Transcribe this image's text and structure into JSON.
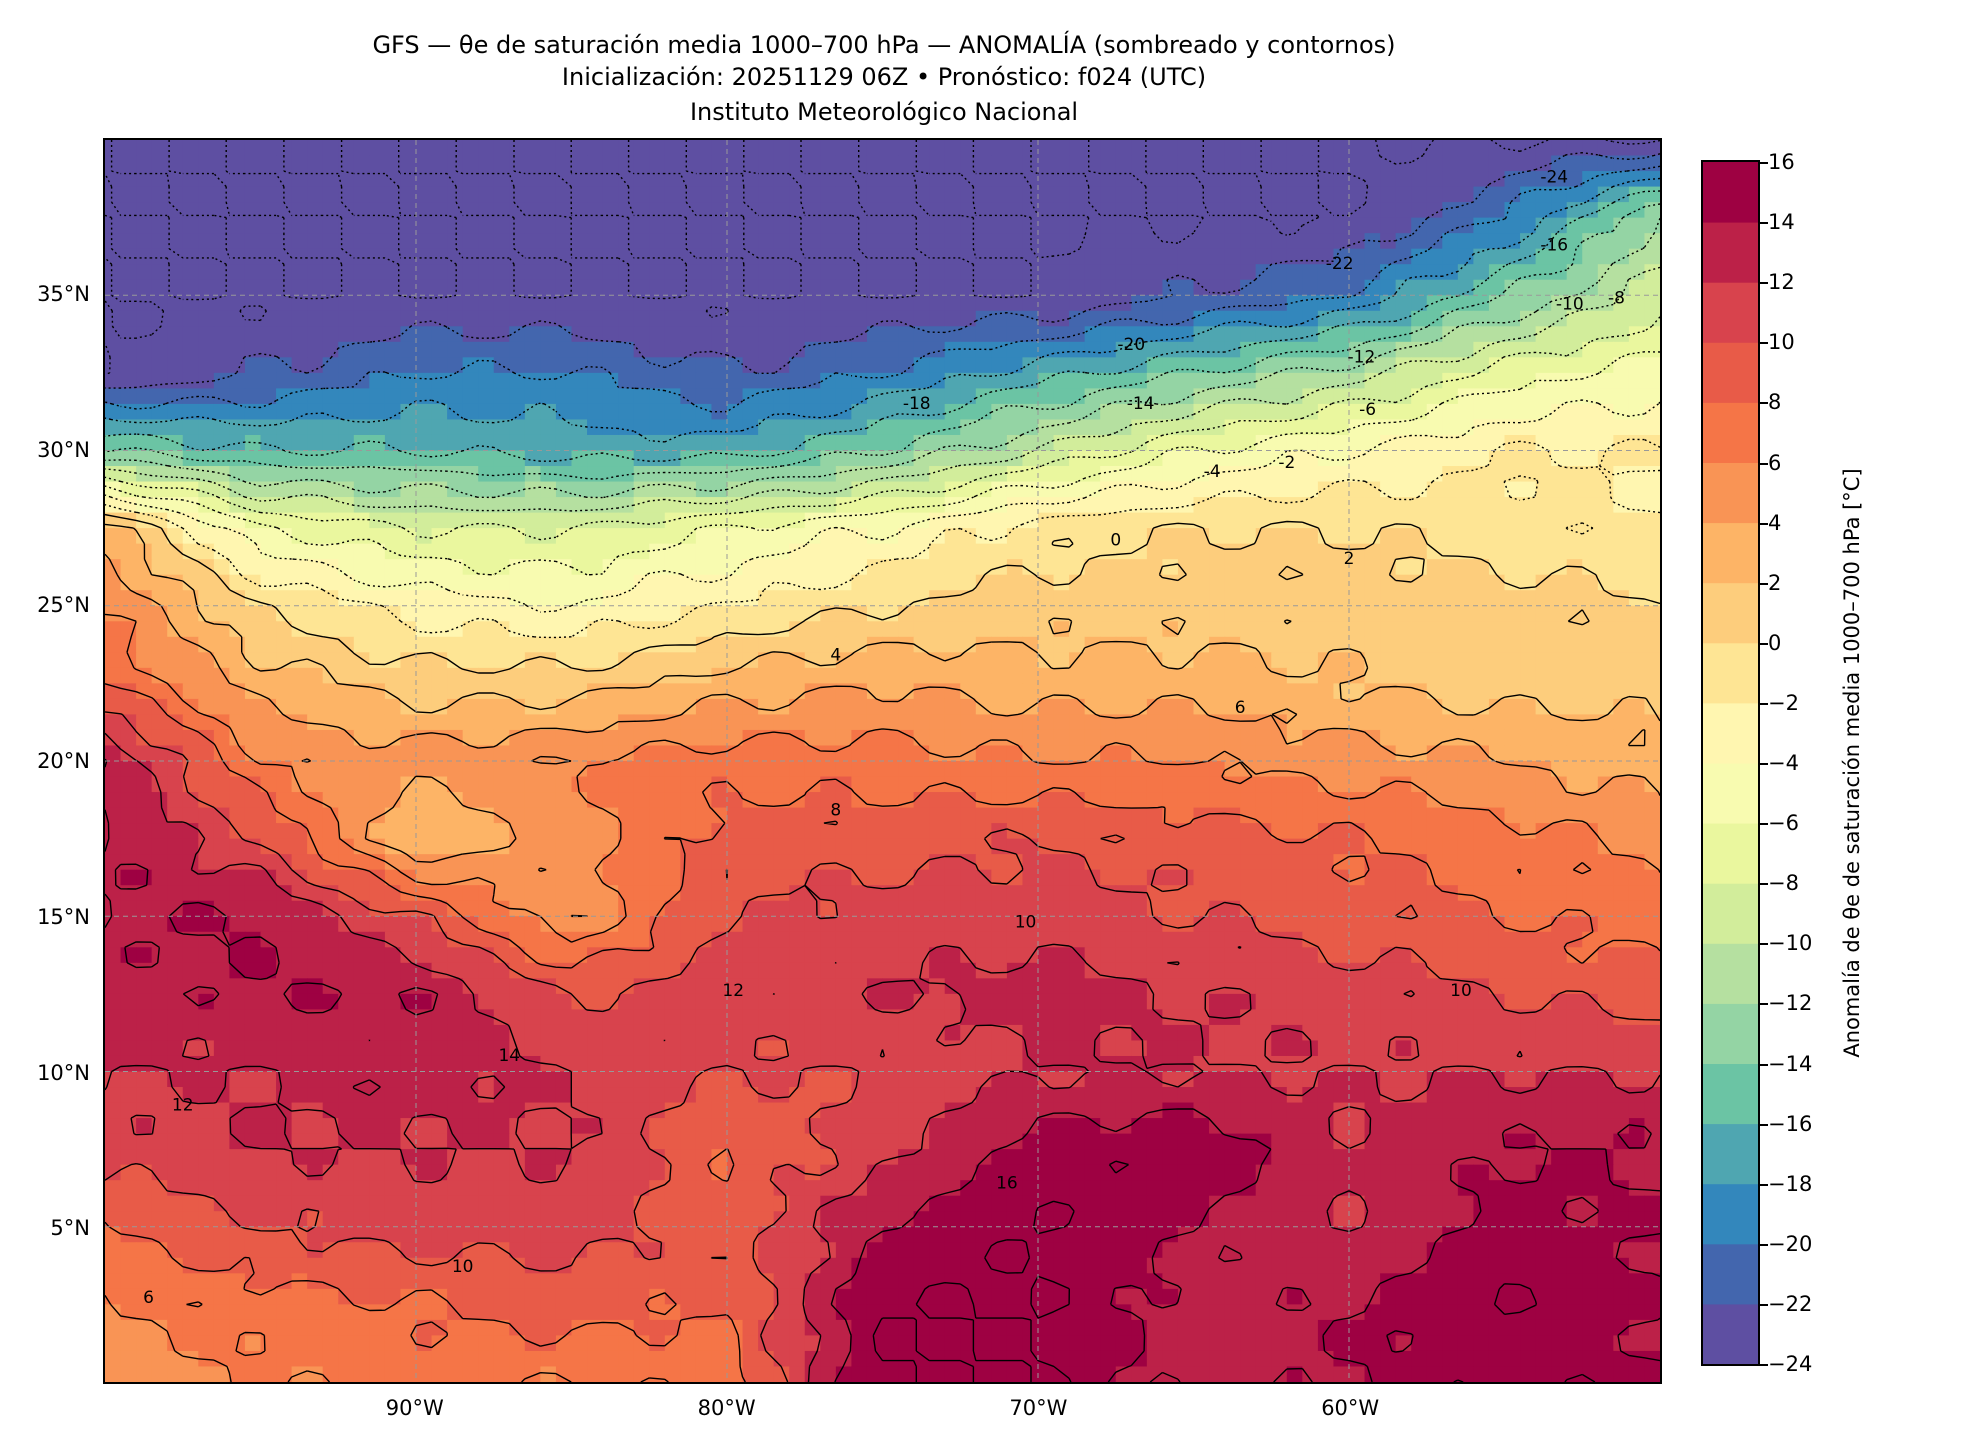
{
  "title": {
    "line1": "GFS — θe de saturación media 1000–700 hPa — ANOMALÍA (sombreado y contornos)",
    "line2": "Inicialización: 20251129 06Z   •   Pronóstico: f024 (UTC)",
    "line3": "Instituto Meteorológico Nacional"
  },
  "chart_data": {
    "type": "heatmap",
    "title": "GFS — θe de saturación media 1000–700 hPa — ANOMALÍA (sombreado y contornos)",
    "colorbar_label": "Anomalía de θe de saturación media 1000–700 hPa [°C]",
    "lon_range": [
      -100,
      -50
    ],
    "lat_range": [
      0,
      40
    ],
    "grid": true,
    "x_ticks": [
      {
        "value": -90,
        "label": "90°W"
      },
      {
        "value": -80,
        "label": "80°W"
      },
      {
        "value": -70,
        "label": "70°W"
      },
      {
        "value": -60,
        "label": "60°W"
      }
    ],
    "y_ticks": [
      {
        "value": 35,
        "label": "35°N"
      },
      {
        "value": 30,
        "label": "30°N"
      },
      {
        "value": 25,
        "label": "25°N"
      },
      {
        "value": 20,
        "label": "20°N"
      },
      {
        "value": 15,
        "label": "15°N"
      },
      {
        "value": 10,
        "label": "10°N"
      },
      {
        "value": 5,
        "label": "5°N"
      }
    ],
    "levels": [
      -24,
      -22,
      -20,
      -18,
      -16,
      -14,
      -12,
      -10,
      -8,
      -6,
      -4,
      -2,
      0,
      2,
      4,
      6,
      8,
      10,
      12,
      14,
      16
    ],
    "colorbar_ticks": [
      "16",
      "14",
      "12",
      "10",
      "8",
      "6",
      "4",
      "2",
      "0",
      "−2",
      "−4",
      "−6",
      "−8",
      "−10",
      "−12",
      "−14",
      "−16",
      "−18",
      "−20",
      "−22",
      "−24"
    ],
    "colors": [
      "#5e4fa2",
      "#4366ae",
      "#3387bc",
      "#4fa6b1",
      "#6bc4a4",
      "#94d4a4",
      "#b5e0a0",
      "#d2ed9b",
      "#eaf79e",
      "#f8fbb0",
      "#fff6b0",
      "#fee594",
      "#fdcd7c",
      "#fdb466",
      "#f99455",
      "#f57547",
      "#e85b48",
      "#d8434d",
      "#bc2148",
      "#9e0142"
    ],
    "field_lons": [
      -100,
      -95,
      -90,
      -85,
      -80,
      -75,
      -70,
      -65,
      -60,
      -55,
      -50
    ],
    "field_lats": [
      40,
      37.5,
      35,
      32.5,
      30,
      27.5,
      25,
      22.5,
      20,
      17.5,
      15,
      12.5,
      10,
      7.5,
      5,
      2.5,
      0
    ],
    "field_values": [
      [
        -24,
        -24,
        -24,
        -24,
        -24,
        -24,
        -24,
        -24,
        -24,
        -24,
        -24
      ],
      [
        -24,
        -24,
        -24,
        -24,
        -24,
        -24,
        -24,
        -24,
        -24,
        -20,
        -12
      ],
      [
        -24,
        -24,
        -24,
        -24,
        -24,
        -24,
        -24,
        -22,
        -20,
        -14,
        -9
      ],
      [
        -24,
        -22,
        -20,
        -20,
        -22,
        -20,
        -17,
        -14,
        -11,
        -7,
        -5
      ],
      [
        -14,
        -16,
        -16,
        -17,
        -17,
        -14,
        -10,
        -6,
        -4,
        -2,
        -2
      ],
      [
        3,
        -6,
        -8,
        -8,
        -6,
        -4,
        -1,
        0,
        0,
        -1,
        -2
      ],
      [
        6,
        0,
        -3,
        -4,
        -2,
        0,
        1,
        1,
        1,
        1,
        0
      ],
      [
        8,
        3,
        1,
        1,
        3,
        4,
        3,
        3,
        2,
        1,
        1
      ],
      [
        14,
        6,
        5,
        6,
        7,
        7,
        6,
        6,
        5,
        4,
        3
      ],
      [
        14,
        10,
        2,
        5,
        9,
        9,
        10,
        9,
        8,
        7,
        5
      ],
      [
        14,
        14,
        10,
        4,
        10,
        11,
        11,
        10,
        9,
        8,
        7
      ],
      [
        13,
        14,
        14,
        10,
        11,
        12,
        13,
        12,
        11,
        10,
        9
      ],
      [
        12,
        12,
        13,
        12,
        10,
        10,
        12,
        12,
        12,
        12,
        12
      ],
      [
        11,
        12,
        12,
        12,
        8,
        11,
        15,
        16,
        12,
        14,
        14
      ],
      [
        8,
        10,
        11,
        11,
        9,
        14,
        16,
        14,
        12,
        15,
        14
      ],
      [
        6,
        7,
        8,
        9,
        8,
        16,
        16,
        13,
        14,
        16,
        14
      ],
      [
        5,
        6,
        7,
        6,
        7,
        16,
        16,
        13,
        14,
        15,
        14
      ]
    ],
    "contour_labels": [
      {
        "text": "-24",
        "lon": -53.4,
        "lat": 38.8
      },
      {
        "text": "-22",
        "lon": -60.3,
        "lat": 36.0
      },
      {
        "text": "-20",
        "lon": -67,
        "lat": 33.4
      },
      {
        "text": "-18",
        "lon": -73.9,
        "lat": 31.5
      },
      {
        "text": "-16",
        "lon": -53.4,
        "lat": 36.6
      },
      {
        "text": "-14",
        "lon": -66.7,
        "lat": 31.5
      },
      {
        "text": "-12",
        "lon": -59.6,
        "lat": 33.0
      },
      {
        "text": "-10",
        "lon": -52.9,
        "lat": 34.7
      },
      {
        "text": "-8",
        "lon": -51.4,
        "lat": 34.9
      },
      {
        "text": "-6",
        "lon": -59.4,
        "lat": 31.3
      },
      {
        "text": "-4",
        "lon": -64.4,
        "lat": 29.3
      },
      {
        "text": "-2",
        "lon": -62,
        "lat": 29.6
      },
      {
        "text": "0",
        "lon": -67.5,
        "lat": 27.1
      },
      {
        "text": "2",
        "lon": -60,
        "lat": 26.5
      },
      {
        "text": "4",
        "lon": -76.5,
        "lat": 23.4
      },
      {
        "text": "6",
        "lon": -63.5,
        "lat": 21.7
      },
      {
        "text": "8",
        "lon": -76.5,
        "lat": 18.4
      },
      {
        "text": "10",
        "lon": -70.4,
        "lat": 14.8
      },
      {
        "text": "12",
        "lon": -79.8,
        "lat": 12.6
      },
      {
        "text": "14",
        "lon": -87,
        "lat": 10.5
      },
      {
        "text": "16",
        "lon": -71,
        "lat": 6.4
      },
      {
        "text": "10",
        "lon": -56.4,
        "lat": 12.6
      },
      {
        "text": "6",
        "lon": -98.6,
        "lat": 2.7
      },
      {
        "text": "10",
        "lon": -88.5,
        "lat": 3.7
      },
      {
        "text": "12",
        "lon": -97.5,
        "lat": 8.9
      }
    ]
  }
}
